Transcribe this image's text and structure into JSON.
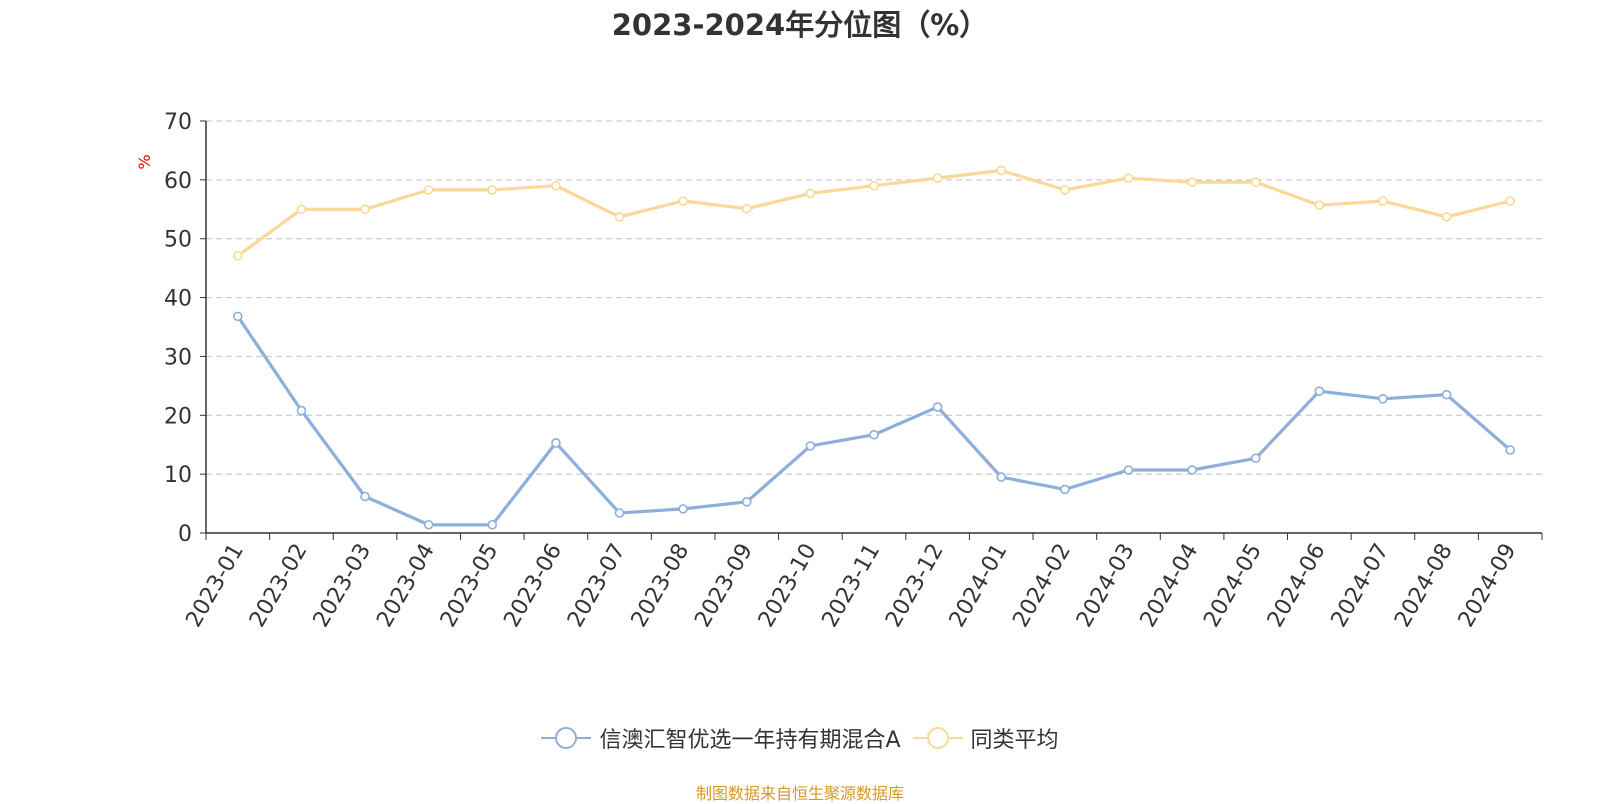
{
  "title": "2023-2024年分位图（%）",
  "source": "制图数据来自恒生聚源数据库",
  "chart_data": {
    "type": "line",
    "title": "2023-2024年分位图（%）",
    "ylabel": "%",
    "xlabel": "",
    "ylim": [
      0,
      70
    ],
    "yticks": [
      0,
      10,
      20,
      30,
      40,
      50,
      60,
      70
    ],
    "grid": true,
    "legend_position": "bottom",
    "categories": [
      "2023-01",
      "2023-02",
      "2023-03",
      "2023-04",
      "2023-05",
      "2023-06",
      "2023-07",
      "2023-08",
      "2023-09",
      "2023-10",
      "2023-11",
      "2023-12",
      "2024-01",
      "2024-02",
      "2024-03",
      "2024-04",
      "2024-05",
      "2024-06",
      "2024-07",
      "2024-08",
      "2024-09"
    ],
    "series": [
      {
        "name": "信澳汇智优选一年持有期混合A",
        "color": "#8eaedb",
        "values": [
          36.8,
          20.8,
          6.2,
          1.4,
          1.4,
          15.3,
          3.4,
          4.1,
          5.3,
          14.8,
          16.7,
          21.4,
          9.5,
          7.4,
          10.7,
          10.7,
          12.7,
          24.1,
          22.8,
          23.5,
          14.1
        ]
      },
      {
        "name": "同类平均",
        "color": "#fad898",
        "values": [
          47.1,
          55.0,
          55.0,
          58.3,
          58.3,
          59.0,
          53.7,
          56.4,
          55.1,
          57.7,
          59.0,
          60.3,
          61.6,
          58.3,
          60.3,
          59.6,
          59.6,
          55.7,
          56.4,
          53.7,
          56.4
        ]
      }
    ]
  }
}
